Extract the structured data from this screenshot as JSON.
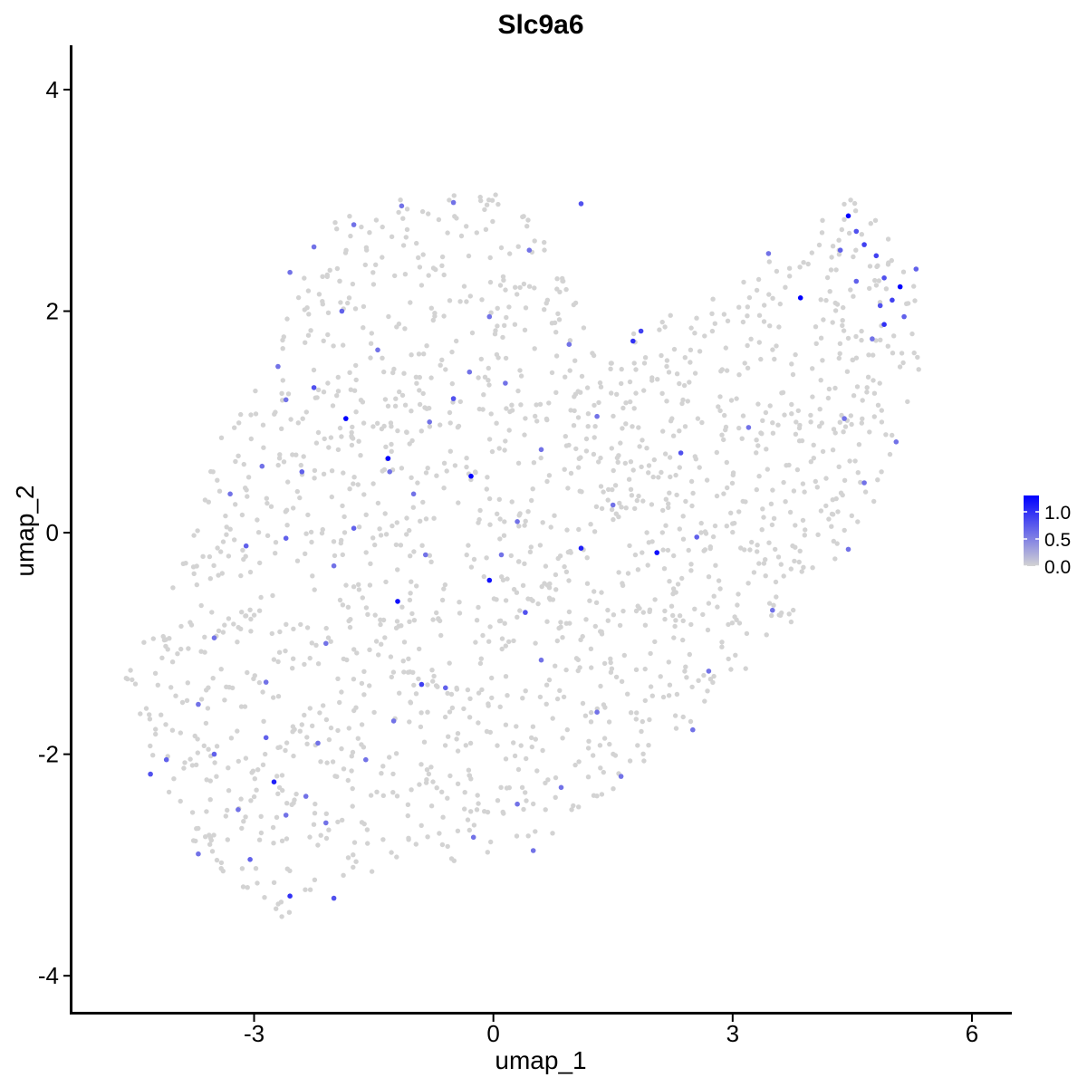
{
  "chart_data": {
    "type": "scatter",
    "title": "Slc9a6",
    "xlabel": "umap_1",
    "ylabel": "umap_2",
    "xlim": [
      -5.3,
      6.5
    ],
    "ylim": [
      -4.35,
      4.4
    ],
    "x_ticks": [
      {
        "value": -3,
        "label": "-3"
      },
      {
        "value": 0,
        "label": "0"
      },
      {
        "value": 3,
        "label": "3"
      },
      {
        "value": 6,
        "label": "6"
      }
    ],
    "y_ticks": [
      {
        "value": -4,
        "label": "-4"
      },
      {
        "value": -2,
        "label": "-2"
      },
      {
        "value": 0,
        "label": "0"
      },
      {
        "value": 2,
        "label": "2"
      },
      {
        "value": 4,
        "label": "4"
      }
    ],
    "grid": false,
    "color_scale": {
      "low_color": "#d3d3d3",
      "high_color": "#0000ff",
      "range": [
        0,
        1.3
      ],
      "legend_ticks": [
        {
          "value": 1.0,
          "label": "1.0"
        },
        {
          "value": 0.5,
          "label": "0.5"
        },
        {
          "value": 0.0,
          "label": "0.0"
        }
      ],
      "legend_position": "right"
    },
    "background_outline": [
      [
        -4.7,
        -1.3
      ],
      [
        -4.3,
        -2.0
      ],
      [
        -3.9,
        -2.7
      ],
      [
        -3.4,
        -3.1
      ],
      [
        -2.6,
        -3.5
      ],
      [
        -2.2,
        -3.3
      ],
      [
        -1.3,
        -3.0
      ],
      [
        -0.2,
        -2.95
      ],
      [
        0.9,
        -2.7
      ],
      [
        2.0,
        -2.0
      ],
      [
        2.7,
        -1.6
      ],
      [
        3.4,
        -1.1
      ],
      [
        3.9,
        -0.7
      ],
      [
        4.5,
        -0.1
      ],
      [
        5.0,
        0.5
      ],
      [
        5.35,
        1.4
      ],
      [
        5.35,
        2.4
      ],
      [
        4.9,
        2.9
      ],
      [
        4.45,
        3.05
      ],
      [
        3.8,
        2.6
      ],
      [
        3.1,
        2.3
      ],
      [
        2.0,
        1.9
      ],
      [
        1.3,
        1.6
      ],
      [
        1.0,
        2.2
      ],
      [
        0.7,
        2.7
      ],
      [
        0.0,
        3.1
      ],
      [
        -0.9,
        3.05
      ],
      [
        -1.9,
        2.9
      ],
      [
        -2.5,
        2.3
      ],
      [
        -2.8,
        1.7
      ],
      [
        -3.4,
        0.9
      ],
      [
        -3.8,
        0.0
      ],
      [
        -4.2,
        -0.8
      ],
      [
        -4.6,
        -1.2
      ]
    ],
    "background_points": {
      "count": 1750,
      "value": 0.0
    },
    "expressing_points": [
      {
        "x": -1.85,
        "y": 1.03,
        "v": 1.3
      },
      {
        "x": -1.32,
        "y": 0.67,
        "v": 1.3
      },
      {
        "x": -0.28,
        "y": 0.51,
        "v": 1.3
      },
      {
        "x": -1.2,
        "y": -0.62,
        "v": 1.2
      },
      {
        "x": -0.05,
        "y": -0.43,
        "v": 1.2
      },
      {
        "x": 2.05,
        "y": -0.18,
        "v": 1.2
      },
      {
        "x": 3.85,
        "y": 2.12,
        "v": 1.3
      },
      {
        "x": 4.45,
        "y": 2.86,
        "v": 1.3
      },
      {
        "x": 5.1,
        "y": 2.22,
        "v": 1.3
      },
      {
        "x": 1.1,
        "y": -0.14,
        "v": 1.1
      },
      {
        "x": -2.75,
        "y": -2.25,
        "v": 1.1
      },
      {
        "x": -2.55,
        "y": -3.28,
        "v": 1.0
      },
      {
        "x": 4.9,
        "y": 1.88,
        "v": 1.0
      },
      {
        "x": 1.85,
        "y": 1.82,
        "v": 0.9
      },
      {
        "x": 1.75,
        "y": 1.73,
        "v": 1.0
      },
      {
        "x": 1.1,
        "y": 2.97,
        "v": 0.8
      },
      {
        "x": -0.5,
        "y": 1.21,
        "v": 0.8
      },
      {
        "x": 0.4,
        "y": -0.72,
        "v": 0.8
      },
      {
        "x": -0.9,
        "y": -1.37,
        "v": 0.9
      },
      {
        "x": -2.25,
        "y": 1.31,
        "v": 0.8
      },
      {
        "x": -2.4,
        "y": 0.55,
        "v": 0.7
      },
      {
        "x": -3.1,
        "y": -0.12,
        "v": 0.7
      },
      {
        "x": -2.6,
        "y": -0.05,
        "v": 0.7
      },
      {
        "x": -1.75,
        "y": 0.04,
        "v": 0.7
      },
      {
        "x": -0.85,
        "y": -0.2,
        "v": 0.6
      },
      {
        "x": 0.3,
        "y": 0.1,
        "v": 0.6
      },
      {
        "x": 0.6,
        "y": 0.75,
        "v": 0.6
      },
      {
        "x": 1.5,
        "y": 0.25,
        "v": 0.6
      },
      {
        "x": 2.35,
        "y": 0.72,
        "v": 0.8
      },
      {
        "x": 2.55,
        "y": -0.04,
        "v": 0.7
      },
      {
        "x": 3.2,
        "y": 0.95,
        "v": 0.6
      },
      {
        "x": 4.55,
        "y": 2.72,
        "v": 0.8
      },
      {
        "x": 4.65,
        "y": 2.6,
        "v": 0.9
      },
      {
        "x": 4.8,
        "y": 2.5,
        "v": 0.9
      },
      {
        "x": 4.9,
        "y": 2.3,
        "v": 0.8
      },
      {
        "x": 5.0,
        "y": 2.1,
        "v": 0.9
      },
      {
        "x": 4.85,
        "y": 2.05,
        "v": 0.8
      },
      {
        "x": 5.15,
        "y": 1.95,
        "v": 0.7
      },
      {
        "x": 5.3,
        "y": 2.38,
        "v": 0.7
      },
      {
        "x": 4.35,
        "y": 2.55,
        "v": 0.7
      },
      {
        "x": 4.55,
        "y": 2.27,
        "v": 0.7
      },
      {
        "x": 4.75,
        "y": 1.75,
        "v": 0.6
      },
      {
        "x": 3.45,
        "y": 2.52,
        "v": 0.6
      },
      {
        "x": 4.4,
        "y": 1.03,
        "v": 0.6
      },
      {
        "x": 4.65,
        "y": 0.45,
        "v": 0.6
      },
      {
        "x": 5.05,
        "y": 0.82,
        "v": 0.6
      },
      {
        "x": 4.45,
        "y": -0.15,
        "v": 0.6
      },
      {
        "x": 3.5,
        "y": -0.7,
        "v": 0.6
      },
      {
        "x": -3.7,
        "y": -1.55,
        "v": 0.6
      },
      {
        "x": -4.1,
        "y": -2.05,
        "v": 0.7
      },
      {
        "x": -4.3,
        "y": -2.18,
        "v": 0.8
      },
      {
        "x": -3.5,
        "y": -2.0,
        "v": 0.7
      },
      {
        "x": -3.2,
        "y": -2.5,
        "v": 0.6
      },
      {
        "x": -2.85,
        "y": -1.85,
        "v": 0.7
      },
      {
        "x": -2.6,
        "y": -2.55,
        "v": 0.6
      },
      {
        "x": -3.05,
        "y": -2.95,
        "v": 0.7
      },
      {
        "x": -2.35,
        "y": -2.38,
        "v": 0.6
      },
      {
        "x": -2.1,
        "y": -2.62,
        "v": 0.6
      },
      {
        "x": -2.0,
        "y": -3.3,
        "v": 0.8
      },
      {
        "x": -3.7,
        "y": -2.9,
        "v": 0.6
      },
      {
        "x": -1.6,
        "y": -2.05,
        "v": 0.6
      },
      {
        "x": -2.2,
        "y": -1.9,
        "v": 0.6
      },
      {
        "x": -1.25,
        "y": -1.7,
        "v": 0.6
      },
      {
        "x": -0.6,
        "y": -1.4,
        "v": 0.7
      },
      {
        "x": 0.6,
        "y": -1.15,
        "v": 0.6
      },
      {
        "x": 1.3,
        "y": -1.62,
        "v": 0.6
      },
      {
        "x": 1.6,
        "y": -2.2,
        "v": 0.6
      },
      {
        "x": 0.85,
        "y": -2.3,
        "v": 0.6
      },
      {
        "x": 0.3,
        "y": -2.45,
        "v": 0.6
      },
      {
        "x": -0.25,
        "y": -2.75,
        "v": 0.6
      },
      {
        "x": 0.5,
        "y": -2.87,
        "v": 0.6
      },
      {
        "x": 2.7,
        "y": -1.25,
        "v": 0.6
      },
      {
        "x": 2.5,
        "y": -1.78,
        "v": 0.6
      },
      {
        "x": -3.3,
        "y": 0.35,
        "v": 0.6
      },
      {
        "x": -2.9,
        "y": 0.6,
        "v": 0.6
      },
      {
        "x": -2.7,
        "y": 1.5,
        "v": 0.6
      },
      {
        "x": -2.55,
        "y": 2.35,
        "v": 0.6
      },
      {
        "x": -2.25,
        "y": 2.58,
        "v": 0.6
      },
      {
        "x": -1.75,
        "y": 2.78,
        "v": 0.6
      },
      {
        "x": -1.45,
        "y": 1.65,
        "v": 0.6
      },
      {
        "x": -1.15,
        "y": 2.95,
        "v": 0.6
      },
      {
        "x": -0.5,
        "y": 2.98,
        "v": 0.6
      },
      {
        "x": -0.3,
        "y": 1.45,
        "v": 0.6
      },
      {
        "x": -0.05,
        "y": 1.95,
        "v": 0.6
      },
      {
        "x": 0.45,
        "y": 2.55,
        "v": 0.6
      },
      {
        "x": 0.95,
        "y": 1.7,
        "v": 0.6
      },
      {
        "x": 1.3,
        "y": 1.05,
        "v": 0.6
      },
      {
        "x": 0.15,
        "y": 1.35,
        "v": 0.6
      },
      {
        "x": -0.8,
        "y": 1.0,
        "v": 0.6
      },
      {
        "x": -1.0,
        "y": 0.35,
        "v": 0.6
      },
      {
        "x": -2.0,
        "y": -0.3,
        "v": 0.6
      },
      {
        "x": -2.1,
        "y": -1.0,
        "v": 0.6
      },
      {
        "x": -2.85,
        "y": -1.35,
        "v": 0.6
      },
      {
        "x": -3.5,
        "y": -0.95,
        "v": 0.6
      },
      {
        "x": -1.3,
        "y": 0.55,
        "v": 0.6
      },
      {
        "x": -1.9,
        "y": 2.0,
        "v": 0.7
      },
      {
        "x": -2.6,
        "y": 1.2,
        "v": 0.6
      },
      {
        "x": 0.1,
        "y": -0.2,
        "v": 0.6
      }
    ]
  }
}
